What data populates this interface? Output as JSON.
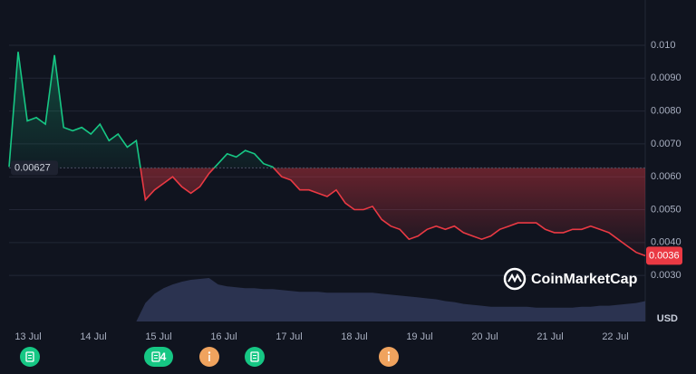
{
  "chart_data": {
    "type": "line",
    "currency": "USD",
    "watermark": "CoinMarketCap",
    "baseline": 0.00627,
    "xtick_labels": [
      "13 Jul",
      "14 Jul",
      "15 Jul",
      "16 Jul",
      "17 Jul",
      "18 Jul",
      "19 Jul",
      "20 Jul",
      "21 Jul",
      "22 Jul"
    ],
    "ylim": [
      0.0016,
      0.0111
    ],
    "yticks": [
      {
        "value": 0.003,
        "label": "0.0030"
      },
      {
        "value": 0.004,
        "label": "0.0040"
      },
      {
        "value": 0.005,
        "label": "0.0050"
      },
      {
        "value": 0.006,
        "label": "0.0060"
      },
      {
        "value": 0.007,
        "label": "0.0070"
      },
      {
        "value": 0.008,
        "label": "0.0080"
      },
      {
        "value": 0.009,
        "label": "0.0090"
      },
      {
        "value": 0.01,
        "label": "0.010"
      }
    ],
    "grid": true,
    "up_color": "#16c784",
    "down_color": "#ea3943",
    "series": [
      {
        "values": [
          0.0063,
          0.0098,
          0.0077,
          0.0078,
          0.0076,
          0.0097,
          0.0075,
          0.0074,
          0.0075,
          0.0073,
          0.0076,
          0.0071,
          0.0073,
          0.0069,
          0.0071,
          0.0053,
          0.0056,
          0.0058,
          0.006,
          0.0057,
          0.0055,
          0.0057,
          0.0061,
          0.0064,
          0.0067,
          0.0066,
          0.0068,
          0.0067,
          0.0064,
          0.0063,
          0.006,
          0.0059,
          0.0056,
          0.0056,
          0.0055,
          0.0054,
          0.0056,
          0.0052,
          0.005,
          0.005,
          0.0051,
          0.0047,
          0.0045,
          0.0044,
          0.0041,
          0.0042,
          0.0044,
          0.0045,
          0.0044,
          0.0045,
          0.0043,
          0.0042,
          0.0041,
          0.0042,
          0.0044,
          0.0045,
          0.0046,
          0.0046,
          0.0046,
          0.0044,
          0.0043,
          0.0043,
          0.0044,
          0.0044,
          0.0045,
          0.0044,
          0.0043,
          0.0041,
          0.0039,
          0.0037,
          0.0036
        ]
      },
      {
        "color": "#2b3350",
        "values": [
          0,
          0,
          0,
          0,
          0,
          0,
          0,
          0,
          0,
          0,
          0,
          0,
          0,
          0,
          0,
          20,
          30,
          36,
          40,
          43,
          45,
          46,
          47,
          40,
          38,
          37,
          36,
          36,
          35,
          35,
          34,
          33,
          32,
          32,
          32,
          31,
          31,
          31,
          31,
          31,
          31,
          30,
          29,
          28,
          27,
          26,
          25,
          24,
          22,
          21,
          19,
          18,
          17,
          16,
          16,
          16,
          16,
          16,
          15,
          15,
          15,
          15,
          15,
          16,
          16,
          17,
          17,
          18,
          19,
          20,
          22
        ]
      }
    ],
    "events": [
      {
        "color": "#16c784"
      },
      {
        "color": "#16c784",
        "count": 4
      },
      {
        "color": "#f0a35e"
      },
      {
        "color": "#16c784"
      },
      {
        "color": "#f0a35e"
      }
    ]
  }
}
